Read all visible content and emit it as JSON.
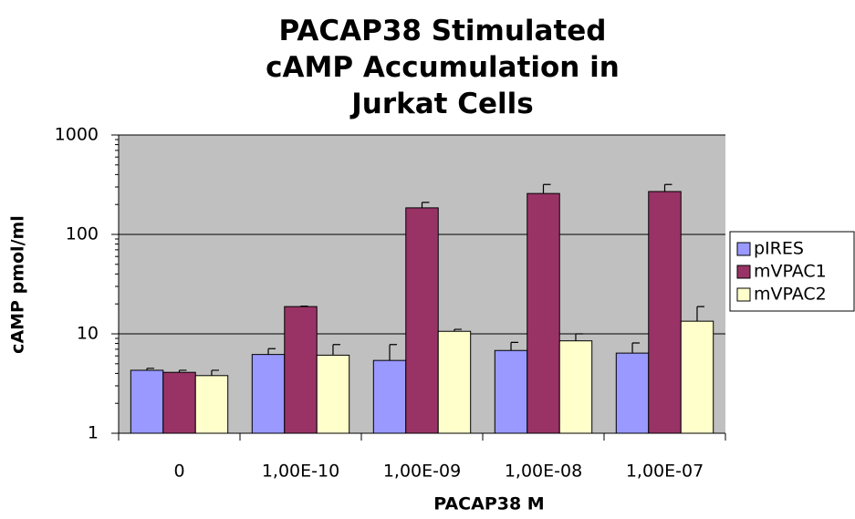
{
  "chart_data": {
    "type": "bar",
    "title": "PACAP38 Stimulated cAMP Accumulation in Jurkat Cells",
    "x_label": "PACAP38 M",
    "y_label": "cAMP pmol/ml",
    "categories": [
      "0",
      "1,00E-10",
      "1,00E-09",
      "1,00E-08",
      "1,00E-07"
    ],
    "series": [
      {
        "name": "pIRES",
        "color": "#9999ff",
        "values": [
          4.3,
          6.2,
          5.4,
          6.8,
          6.4
        ],
        "errors": [
          0.2,
          0.9,
          2.4,
          1.4,
          1.7
        ]
      },
      {
        "name": "mVPAC1",
        "color": "#993366",
        "values": [
          4.1,
          18.8,
          185,
          258,
          270
        ],
        "errors": [
          0.2,
          0.2,
          25,
          60,
          48
        ]
      },
      {
        "name": "mVPAC2",
        "color": "#ffffcc",
        "values": [
          3.8,
          6.1,
          10.6,
          8.5,
          13.4
        ],
        "errors": [
          0.5,
          1.7,
          0.5,
          1.5,
          5.4
        ]
      }
    ],
    "ylim": [
      1,
      1000
    ],
    "yticks": [
      1,
      10,
      100,
      1000
    ],
    "log_y": true,
    "grid": true,
    "plot_background": "#c0c0c0",
    "legend": "right"
  }
}
